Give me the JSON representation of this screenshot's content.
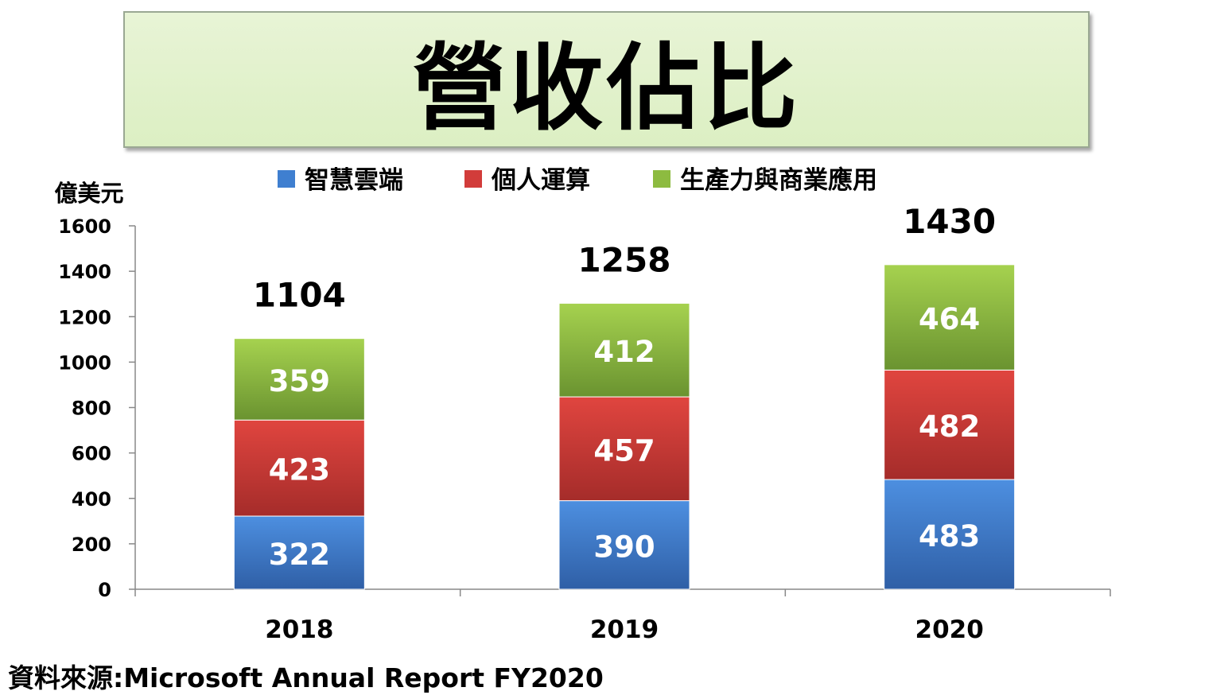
{
  "title": "營收佔比",
  "source": "資料來源:Microsoft Annual Report FY2020",
  "colors": {
    "cloud": "#3f7fd0",
    "pc": "#d23c3a",
    "productivity": "#8dbb40",
    "title_bg": "#e2f1cf"
  },
  "chart_data": {
    "type": "bar",
    "stacked": true,
    "ylabel": "億美元",
    "ylim": [
      0,
      1600
    ],
    "yticks": [
      0,
      200,
      400,
      600,
      800,
      1000,
      1200,
      1400,
      1600
    ],
    "categories": [
      "2018",
      "2019",
      "2020"
    ],
    "legend_position": "top",
    "grid": false,
    "series": [
      {
        "name": "智慧雲端",
        "values": [
          322,
          390,
          483
        ]
      },
      {
        "name": "個人運算",
        "values": [
          423,
          457,
          482
        ]
      },
      {
        "name": "生產力與商業應用",
        "values": [
          359,
          412,
          464
        ]
      }
    ],
    "totals": [
      1104,
      1258,
      1430
    ]
  }
}
